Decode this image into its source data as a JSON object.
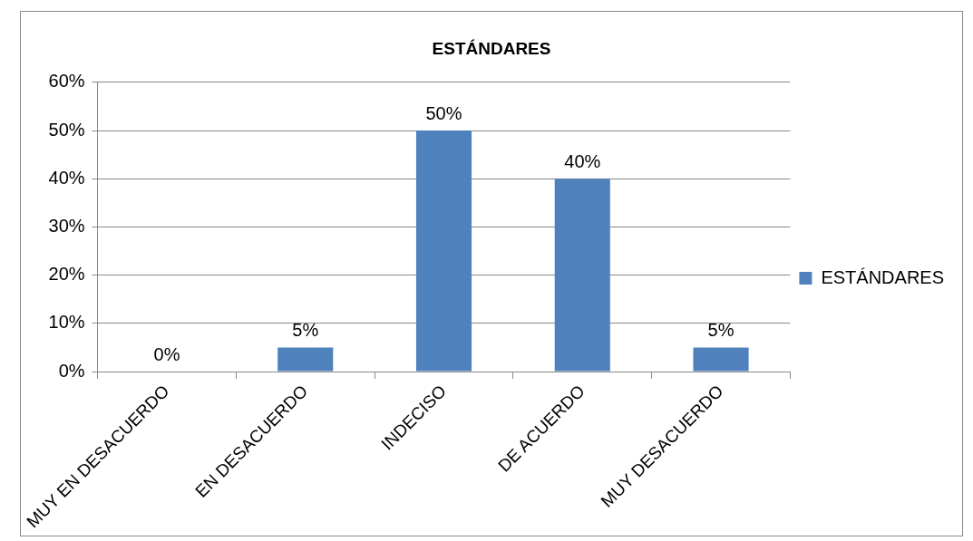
{
  "chart_data": {
    "type": "bar",
    "title": "ESTÁNDARES",
    "categories": [
      "MUY EN DESACUERDO",
      "EN DESACUERDO",
      "INDECISO",
      "DE ACUERDO",
      "MUY DESACUERDO"
    ],
    "series": [
      {
        "name": "ESTÁNDARES",
        "color": "#4f81bd",
        "values": [
          0,
          5,
          50,
          40,
          5
        ],
        "value_labels": [
          "0%",
          "5%",
          "50%",
          "40%",
          "5%"
        ]
      }
    ],
    "ylim": [
      0,
      60
    ],
    "yticks": [
      {
        "value": 0,
        "label": "0%"
      },
      {
        "value": 10,
        "label": "10%"
      },
      {
        "value": 20,
        "label": "20%"
      },
      {
        "value": 30,
        "label": "30%"
      },
      {
        "value": 40,
        "label": "40%"
      },
      {
        "value": 50,
        "label": "50%"
      },
      {
        "value": 60,
        "label": "60%"
      }
    ],
    "grid": "y",
    "legend": "right"
  }
}
